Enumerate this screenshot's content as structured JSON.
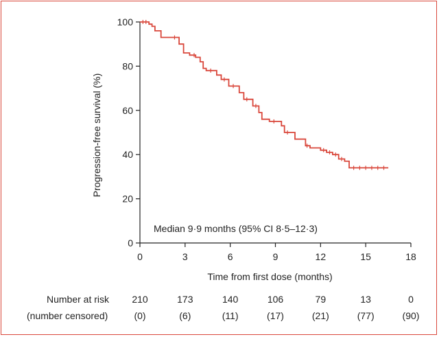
{
  "chart_data": {
    "type": "line",
    "title": "",
    "xlabel": "Time from first dose (months)",
    "ylabel": "Progression-free survival (%)",
    "xlim": [
      0,
      18
    ],
    "ylim": [
      0,
      100
    ],
    "xticks": [
      0,
      3,
      6,
      9,
      12,
      15,
      18
    ],
    "yticks": [
      0,
      20,
      40,
      60,
      80,
      100
    ],
    "annotation": "Median 9·9 months (95% CI 8·5–12·3)",
    "line_color": "#d9463a",
    "series": [
      {
        "name": "Progression-free survival",
        "x": [
          0,
          0.6,
          0.6,
          0.8,
          0.8,
          1.0,
          1.0,
          1.4,
          1.4,
          2.6,
          2.6,
          2.9,
          2.9,
          3.3,
          3.3,
          3.7,
          3.7,
          4.0,
          4.0,
          4.2,
          4.2,
          4.4,
          4.4,
          5.1,
          5.1,
          5.4,
          5.4,
          5.9,
          5.9,
          6.6,
          6.6,
          6.9,
          6.9,
          7.5,
          7.5,
          7.9,
          7.9,
          8.1,
          8.1,
          8.6,
          8.6,
          9.4,
          9.4,
          9.6,
          9.6,
          10.3,
          10.3,
          11.0,
          11.0,
          11.3,
          11.3,
          12.0,
          12.0,
          12.4,
          12.4,
          12.8,
          12.8,
          13.2,
          13.2,
          13.6,
          13.6,
          13.9,
          13.9,
          16.5
        ],
        "y": [
          100,
          100,
          99,
          99,
          98,
          98,
          96,
          96,
          93,
          93,
          90,
          90,
          86,
          86,
          85,
          85,
          84,
          84,
          82,
          82,
          79,
          79,
          78,
          78,
          76,
          76,
          74,
          74,
          71,
          71,
          68,
          68,
          65,
          65,
          62,
          62,
          59,
          59,
          56,
          56,
          55,
          55,
          53,
          53,
          50,
          50,
          47,
          47,
          44,
          44,
          43,
          43,
          42,
          42,
          41,
          41,
          40,
          40,
          38,
          38,
          37,
          37,
          34,
          34
        ]
      }
    ],
    "censor_marks_x": [
      0.2,
      0.4,
      2.3,
      3.6,
      4.7,
      5.6,
      6.2,
      7.1,
      7.7,
      8.9,
      9.8,
      11.1,
      12.2,
      12.6,
      13.0,
      13.4,
      14.2,
      14.6,
      15.0,
      15.4,
      15.8,
      16.2
    ],
    "risk_table": {
      "label_1": "Number at risk",
      "label_2": "(number censored)",
      "at_risk": [
        "210",
        "173",
        "140",
        "106",
        "79",
        "13",
        "0"
      ],
      "censored": [
        "(0)",
        "(6)",
        "(11)",
        "(17)",
        "(21)",
        "(77)",
        "(90)"
      ]
    }
  }
}
